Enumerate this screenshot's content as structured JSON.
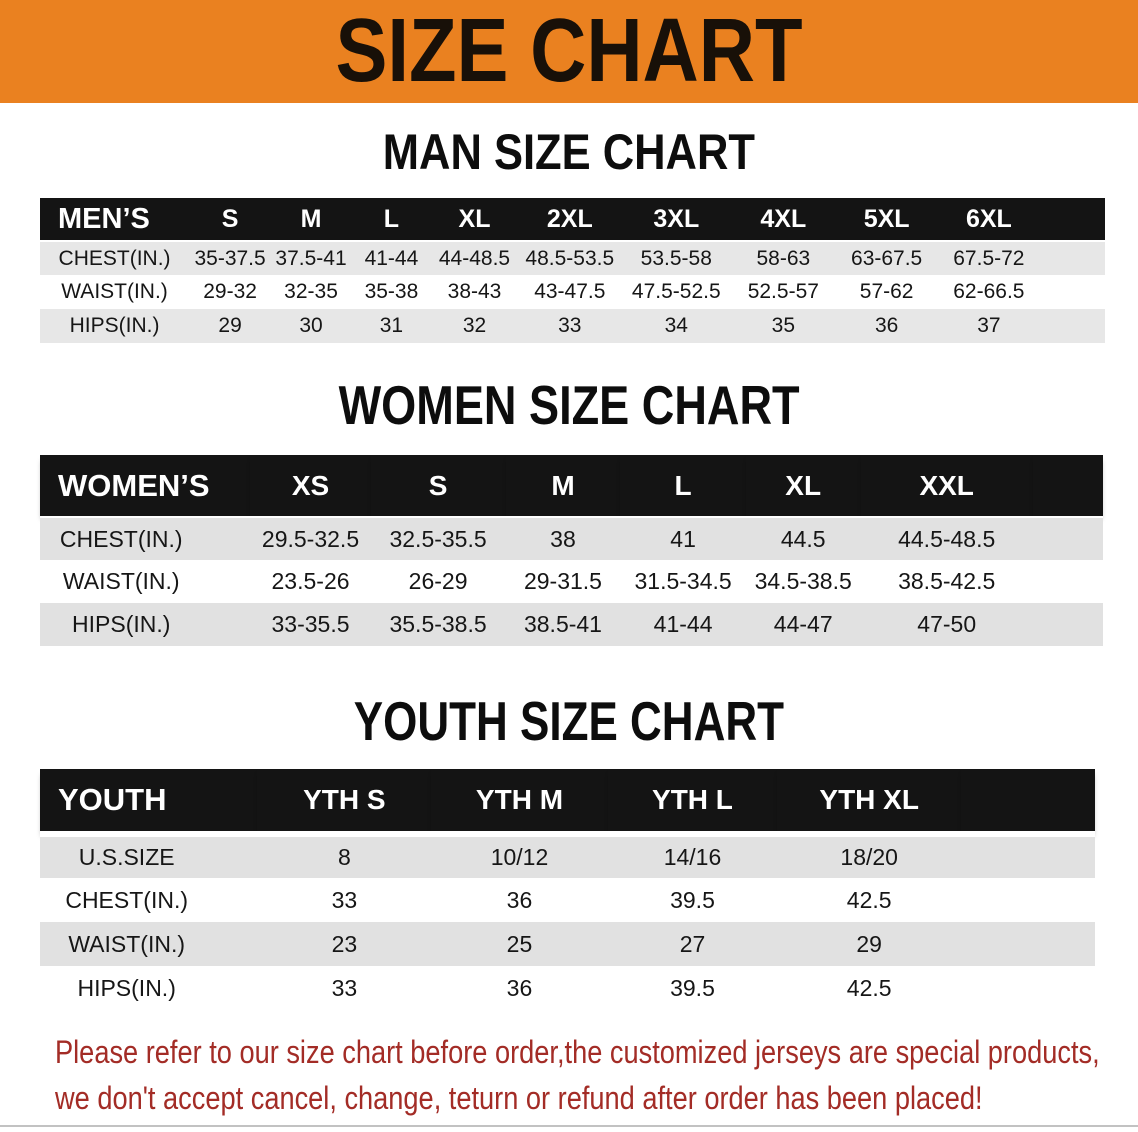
{
  "banner": {
    "title": "SIZE CHART",
    "bg_color": "#EA8120"
  },
  "sections": [
    {
      "heading": "MAN SIZE CHART",
      "group_label": "MEN’S",
      "columns": [
        "S",
        "M",
        "L",
        "XL",
        "2XL",
        "3XL",
        "4XL",
        "5XL",
        "6XL"
      ],
      "rows": [
        {
          "label": "CHEST(IN.)",
          "values": [
            "35-37.5",
            "37.5-41",
            "41-44",
            "44-48.5",
            "48.5-53.5",
            "53.5-58",
            "58-63",
            "63-67.5",
            "67.5-72"
          ]
        },
        {
          "label": "WAIST(IN.)",
          "values": [
            "29-32",
            "32-35",
            "35-38",
            "38-43",
            "43-47.5",
            "47.5-52.5",
            "52.5-57",
            "57-62",
            "62-66.5"
          ]
        },
        {
          "label": "HIPS(IN.)",
          "values": [
            "29",
            "30",
            "31",
            "32",
            "33",
            "34",
            "35",
            "36",
            "37"
          ]
        }
      ]
    },
    {
      "heading": "WOMEN SIZE CHART",
      "group_label": "WOMEN’S",
      "columns": [
        "XS",
        "S",
        "M",
        "L",
        "XL",
        "XXL"
      ],
      "rows": [
        {
          "label": "CHEST(IN.)",
          "values": [
            "29.5-32.5",
            "32.5-35.5",
            "38",
            "41",
            "44.5",
            "44.5-48.5"
          ]
        },
        {
          "label": "WAIST(IN.)",
          "values": [
            "23.5-26",
            "26-29",
            "29-31.5",
            "31.5-34.5",
            "34.5-38.5",
            "38.5-42.5"
          ]
        },
        {
          "label": "HIPS(IN.)",
          "values": [
            "33-35.5",
            "35.5-38.5",
            "38.5-41",
            "41-44",
            "44-47",
            "47-50"
          ]
        }
      ]
    },
    {
      "heading": "YOUTH SIZE CHART",
      "group_label": "YOUTH",
      "columns": [
        "YTH S",
        "YTH M",
        "YTH L",
        "YTH XL"
      ],
      "rows": [
        {
          "label": "U.S.SIZE",
          "values": [
            "8",
            "10/12",
            "14/16",
            "18/20"
          ]
        },
        {
          "label": "CHEST(IN.)",
          "values": [
            "33",
            "36",
            "39.5",
            "42.5"
          ]
        },
        {
          "label": "WAIST(IN.)",
          "values": [
            "23",
            "25",
            "27",
            "29"
          ]
        },
        {
          "label": "HIPS(IN.)",
          "values": [
            "33",
            "36",
            "39.5",
            "42.5"
          ]
        }
      ]
    }
  ],
  "disclaimer": {
    "line1": "Please refer to our size chart before order,the customized jerseys are special products,",
    "line2": "we don't accept cancel, change, teturn or refund after order has been placed!"
  },
  "colors": {
    "banner_bg": "#EA8120",
    "table_header_bg": "#141414",
    "row_alt_bg": "#e1e1e1",
    "disclaimer_text": "#A32C26"
  }
}
